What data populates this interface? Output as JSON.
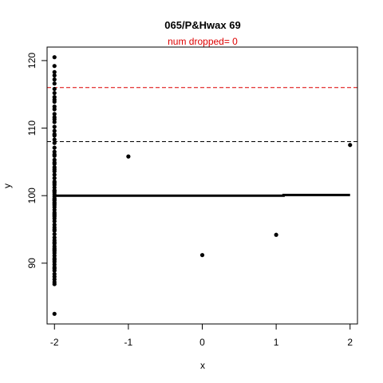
{
  "chart_data": {
    "type": "scatter",
    "title": "065/P&Hwax 69",
    "subtitle": "num dropped= 0",
    "xlabel": "x",
    "ylabel": "y",
    "xlim": [
      -2.1,
      2.1
    ],
    "ylim": [
      81,
      122
    ],
    "xticks": [
      -2,
      -1,
      0,
      1,
      2
    ],
    "xtick_labels": [
      "-2",
      "-1",
      "0",
      "1",
      "2"
    ],
    "yticks": [
      90,
      100,
      110,
      120
    ],
    "ytick_labels": [
      "90",
      "100",
      "110",
      "120"
    ],
    "grid": false,
    "colors": {
      "points": "#000000",
      "upper_line": "#dd0000",
      "lower_line": "#000000",
      "subtitle": "#dd0000",
      "mean_line": "#000000"
    },
    "reference_lines": [
      {
        "y": 116,
        "color": "#dd0000",
        "style": "dashed"
      },
      {
        "y": 108,
        "color": "#000000",
        "style": "dashed"
      }
    ],
    "mean_line": {
      "x": [
        -2,
        1.1,
        1.1,
        2
      ],
      "y": [
        100.0,
        100.0,
        100.1,
        100.1
      ]
    },
    "points": {
      "x": [
        -2,
        -2,
        -2,
        -2,
        -2,
        -2,
        -2,
        -2,
        -2,
        -2,
        -2,
        -2,
        -2,
        -2,
        -2,
        -2,
        -2,
        -2,
        -2,
        -2,
        -2,
        -2,
        -2,
        -2,
        -2,
        -2,
        -2,
        -2,
        -2,
        -2,
        -2,
        -2,
        -2,
        -2,
        -2,
        -2,
        -2,
        -2,
        -2,
        -2,
        -2,
        -2,
        -2,
        -2,
        -2,
        -2,
        -2,
        -2,
        -2,
        -2,
        -2,
        -2,
        -2,
        -2,
        -2,
        -2,
        -2,
        -2,
        -2,
        -2,
        -2,
        -2,
        -2,
        -2,
        -2,
        -2,
        -2,
        -2,
        -2,
        -2,
        -2,
        -2,
        -2,
        -2,
        -2,
        -2,
        -2,
        -2,
        -2,
        -2,
        -2,
        -2,
        -2,
        -2,
        -2,
        -2,
        -1,
        0,
        1,
        2
      ],
      "y": [
        120.5,
        119.2,
        118.3,
        117.8,
        117.2,
        115.8,
        115.2,
        114.6,
        113.9,
        113.2,
        112.1,
        111.6,
        110.9,
        110.2,
        109.6,
        108.9,
        108.3,
        107.8,
        107.1,
        106.5,
        105.9,
        105.3,
        104.7,
        104.2,
        103.6,
        103.1,
        102.6,
        102.1,
        101.6,
        101.2,
        100.8,
        100.5,
        100.2,
        99.9,
        99.6,
        99.3,
        99.0,
        98.6,
        98.3,
        97.9,
        97.5,
        97.1,
        96.6,
        96.2,
        95.7,
        95.3,
        94.8,
        94.3,
        93.8,
        93.4,
        92.9,
        92.5,
        92.0,
        91.5,
        91.1,
        90.7,
        90.2,
        89.8,
        89.4,
        88.9,
        88.4,
        88.0,
        87.6,
        87.2,
        86.9,
        82.5,
        101.9,
        100.7,
        99.4,
        98.8,
        97.3,
        96.9,
        95.0,
        93.1,
        92.2,
        91.8,
        90.5,
        89.2,
        103.9,
        104.9,
        106.1,
        109.1,
        111.3,
        112.8,
        114.2,
        116.6,
        105.8,
        91.2,
        94.2,
        107.5
      ]
    }
  }
}
